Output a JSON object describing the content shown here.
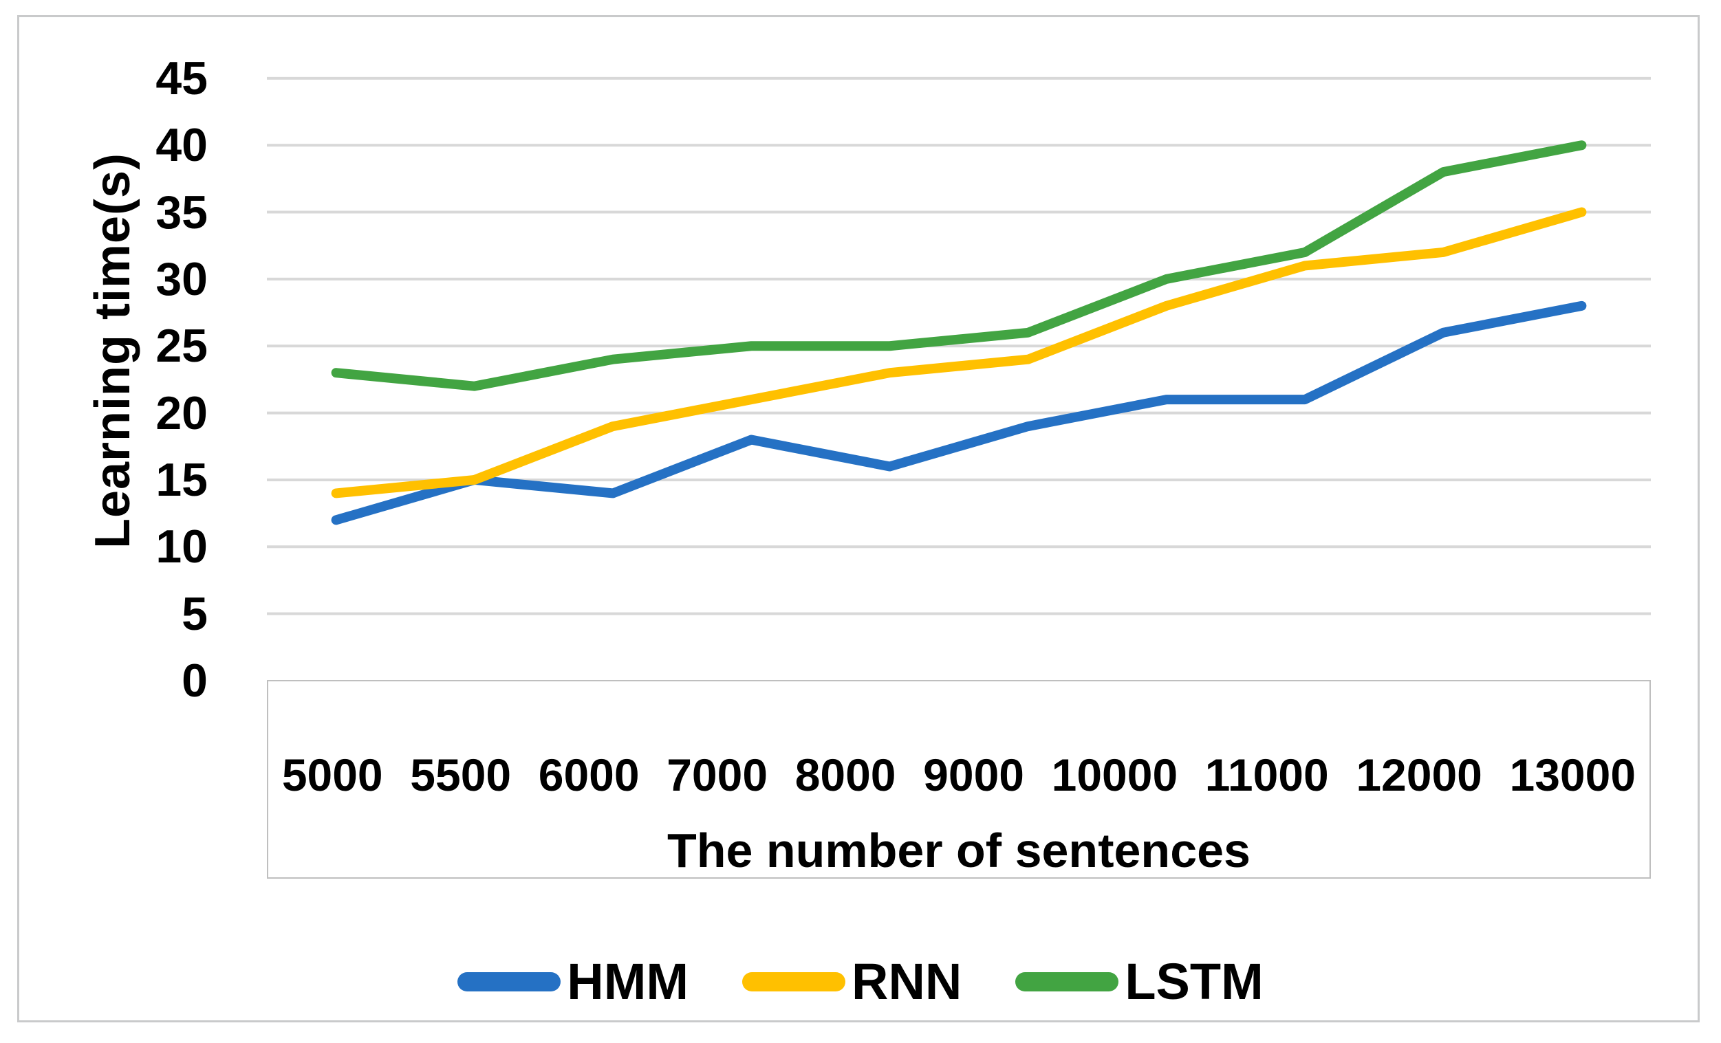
{
  "figure": {
    "kind": "line-chart-figure",
    "background": "#ffffff",
    "frame_border_color": "#c9cacb",
    "plot": {
      "gridline_color": "#d8d8d8",
      "gridline_width": 4,
      "label_box_border_color": "#bfbfbf",
      "line_stroke_width": 14,
      "text_color": "#000000"
    }
  },
  "chart_data": {
    "type": "line",
    "title": "",
    "xlabel": "The number of sentences",
    "ylabel": "Learning time(s)",
    "categories": [
      "5000",
      "5500",
      "6000",
      "7000",
      "8000",
      "9000",
      "10000",
      "11000",
      "12000",
      "13000"
    ],
    "y_ticks": [
      0,
      5,
      10,
      15,
      20,
      25,
      30,
      35,
      40,
      45
    ],
    "ylim": [
      0,
      45
    ],
    "grid": true,
    "legend_position": "bottom",
    "series": [
      {
        "name": "HMM",
        "color": "#2571c4",
        "values": [
          12,
          15,
          14,
          18,
          16,
          19,
          21,
          21,
          26,
          28
        ]
      },
      {
        "name": "RNN",
        "color": "#ffc000",
        "values": [
          14,
          15,
          19,
          21,
          23,
          24,
          28,
          31,
          32,
          35
        ]
      },
      {
        "name": "LSTM",
        "color": "#42a442",
        "values": [
          23,
          22,
          24,
          25,
          25,
          26,
          30,
          32,
          38,
          40
        ]
      }
    ]
  }
}
